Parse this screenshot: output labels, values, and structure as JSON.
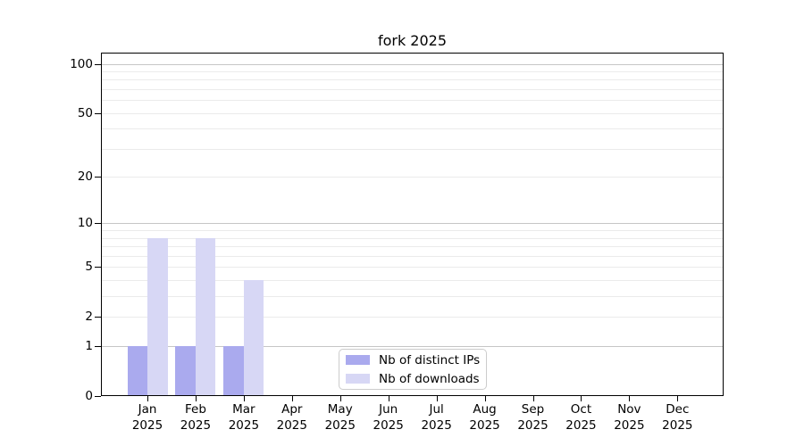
{
  "chart_data": {
    "type": "bar",
    "title": "fork 2025",
    "categories": [
      "Jan",
      "Feb",
      "Mar",
      "Apr",
      "May",
      "Jun",
      "Jul",
      "Aug",
      "Sep",
      "Oct",
      "Nov",
      "Dec"
    ],
    "category_year": "2025",
    "series": [
      {
        "name": "Nb of distinct IPs",
        "color": "#aaaaee",
        "values": [
          1,
          1,
          1,
          0,
          0,
          0,
          0,
          0,
          0,
          0,
          0,
          0
        ]
      },
      {
        "name": "Nb of downloads",
        "color": "#d7d7f5",
        "values": [
          8,
          8,
          4,
          0,
          0,
          0,
          0,
          0,
          0,
          0,
          0,
          0
        ]
      }
    ],
    "xlabel": "",
    "ylabel": "",
    "yscale": "log1p",
    "ylim": [
      0,
      117
    ],
    "yticks": [
      0,
      1,
      2,
      5,
      10,
      20,
      50,
      100
    ],
    "minor_gridline_values": [
      2,
      3,
      4,
      5,
      6,
      7,
      8,
      9,
      20,
      30,
      40,
      50,
      60,
      70,
      80,
      90
    ],
    "major_gridline_values": [
      1,
      10,
      100
    ],
    "grid": "horizontal",
    "legend_position": "lower center",
    "colors": {
      "minor_gridline": "#ebebeb",
      "major_gridline": "#c6c6c6",
      "axis": "#000000",
      "text": "#000000",
      "background": "#ffffff",
      "legend_border": "#cccccc"
    }
  }
}
